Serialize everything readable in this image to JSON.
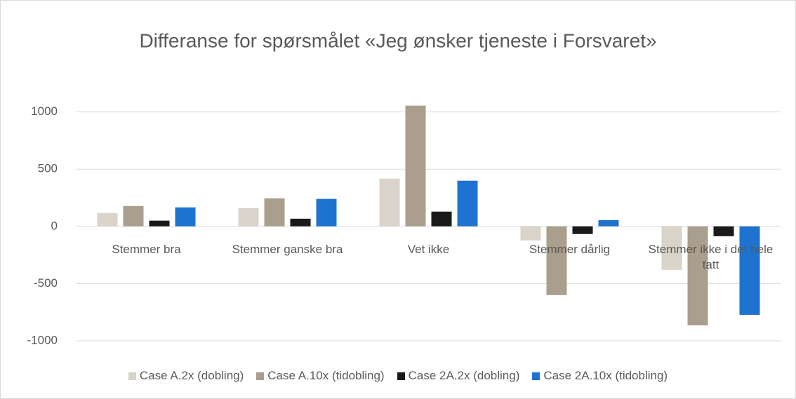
{
  "chart_data": {
    "type": "bar",
    "title": "Differanse for spørsmålet «Jeg ønsker tjeneste i Forsvaret»",
    "categories": [
      "Stemmer bra",
      "Stemmer ganske bra",
      "Vet ikke",
      "Stemmer dårlig",
      "Stemmer ikke i det hele tatt"
    ],
    "series": [
      {
        "name": "Case A.2x (dobling)",
        "color": "#d9d3c9",
        "values": [
          117,
          160,
          417,
          -123,
          -380
        ]
      },
      {
        "name": "Case A.10x (tidobling)",
        "color": "#aa9e8c",
        "values": [
          178,
          245,
          1055,
          -601,
          -865
        ]
      },
      {
        "name": "Case 2A.2x (dobling)",
        "color": "#1a1a1a",
        "values": [
          50,
          67,
          129,
          -67,
          -86
        ]
      },
      {
        "name": "Case 2A.10x (tidobling)",
        "color": "#1f73d0",
        "values": [
          166,
          240,
          399,
          55,
          -773
        ]
      }
    ],
    "ylim": [
      -1000,
      1100
    ],
    "yticks": [
      -1000,
      -500,
      0,
      500,
      1000
    ],
    "grid": true,
    "legend": "bottom"
  }
}
